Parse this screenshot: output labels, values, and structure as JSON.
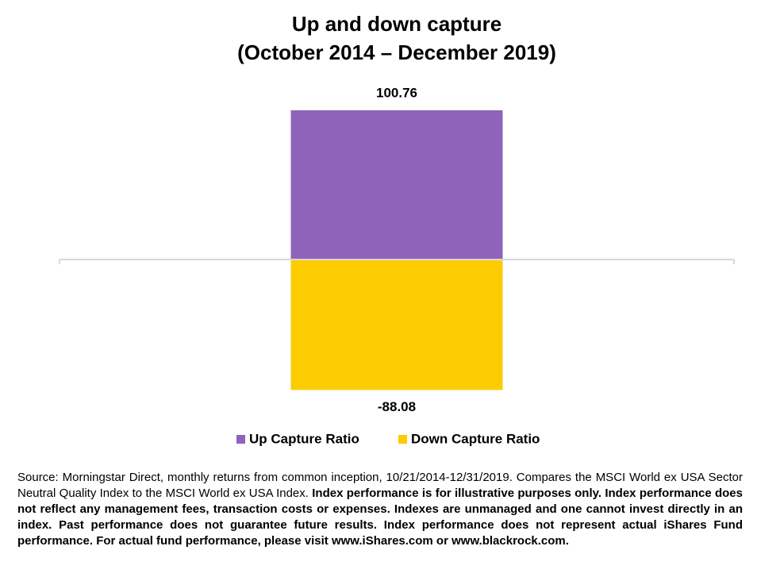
{
  "chart_data": {
    "type": "bar",
    "stacked": true,
    "title": "Up and down capture",
    "subtitle": "(October 2014 – December 2019)",
    "categories": [
      null
    ],
    "series": [
      {
        "name": "Up Capture Ratio",
        "color": "#9063bb",
        "values": [
          100.76
        ]
      },
      {
        "name": "Down Capture Ratio",
        "color": "#fccc00",
        "values": [
          -88.08
        ]
      }
    ],
    "ylim": [
      -100,
      120
    ],
    "legend": "bottom",
    "source": "Source: Morningstar Direct, monthly returns from common inception, 10/21/2014-12/31/2019. Compares the MSCI World ex USA Sector Neutral Quality Index to the MSCI World ex USA Index.",
    "disclaimer": "Index performance is for illustrative purposes only.  Index performance does not reflect any management fees, transaction costs or expenses. Indexes are unmanaged and one cannot invest directly in an index. Past performance does not guarantee future results. Index performance does not represent actual iShares Fund performance. For actual fund performance, please visit www.iShares.com or www.blackrock.com."
  }
}
